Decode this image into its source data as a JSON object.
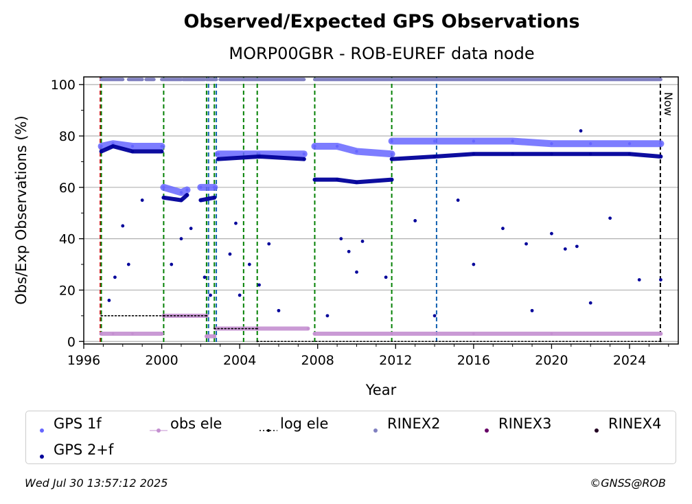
{
  "title": "Observed/Expected GPS Observations",
  "subtitle": "MORP00GBR - ROB-EUREF data node",
  "footer": {
    "timestamp": "Wed Jul 30 13:57:12 2025",
    "credit": "©GNSS@ROB"
  },
  "colors": {
    "gps1f": "#6666ff",
    "gps2f": "#00009a",
    "obs_ele": "#c48fd0",
    "log_ele": "#000000",
    "rinex2": "#8080c0",
    "rinex3": "#660066",
    "rinex4": "#220022",
    "vline_green": "#008000",
    "vline_blue": "#1060b0",
    "vline_red": "#cc0000",
    "grid": "#b0b0b0"
  },
  "chart_data": {
    "type": "scatter",
    "xlabel": "Year",
    "ylabel": "Obs/Exp Observations (%)",
    "xlim": [
      1996,
      2026.5
    ],
    "ylim": [
      -1,
      103
    ],
    "xticks": [
      1996,
      2000,
      2004,
      2008,
      2012,
      2016,
      2020,
      2024
    ],
    "yticks": [
      0,
      20,
      40,
      60,
      80,
      100
    ],
    "grid": true,
    "now_label": "Now",
    "now_x": 2025.58,
    "vlines": [
      {
        "x": 1996.85,
        "color": "red"
      },
      {
        "x": 1996.9,
        "color": "green"
      },
      {
        "x": 2000.1,
        "color": "green"
      },
      {
        "x": 2002.3,
        "color": "green"
      },
      {
        "x": 2002.4,
        "color": "blue"
      },
      {
        "x": 2002.7,
        "color": "green"
      },
      {
        "x": 2002.8,
        "color": "blue"
      },
      {
        "x": 2004.2,
        "color": "green"
      },
      {
        "x": 2004.9,
        "color": "green"
      },
      {
        "x": 2007.85,
        "color": "green"
      },
      {
        "x": 2011.8,
        "color": "green"
      },
      {
        "x": 2014.1,
        "color": "blue"
      }
    ],
    "legend": {
      "placement": "bottom",
      "entries": [
        "GPS 1f",
        "obs ele",
        "log ele",
        "RINEX2",
        "RINEX3",
        "RINEX4",
        "GPS 2+f"
      ]
    },
    "series": [
      {
        "name": "GPS 1f",
        "segments": [
          {
            "x": [
              1996.9,
              1997.5,
              1998.5,
              2000.0
            ],
            "y": [
              76,
              77,
              76,
              76
            ]
          },
          {
            "x": [
              2000.1,
              2001.0,
              2001.3
            ],
            "y": [
              60,
              58,
              59
            ]
          },
          {
            "x": [
              2002.0,
              2002.7
            ],
            "y": [
              60,
              60
            ]
          },
          {
            "x": [
              2002.9,
              2005.0,
              2007.3
            ],
            "y": [
              73,
              73,
              73
            ]
          },
          {
            "x": [
              2007.85,
              2009.0,
              2010.0,
              2011.8
            ],
            "y": [
              76,
              76,
              74,
              73
            ]
          },
          {
            "x": [
              2011.8,
              2014.0,
              2016.0,
              2018.0,
              2020.0,
              2022.0,
              2024.0,
              2025.6
            ],
            "y": [
              78,
              78,
              78,
              78,
              77,
              77,
              77,
              77
            ]
          }
        ]
      },
      {
        "name": "GPS 2+f",
        "segments": [
          {
            "x": [
              1996.9,
              1997.5,
              1998.5,
              2000.0
            ],
            "y": [
              74,
              76,
              74,
              74
            ]
          },
          {
            "x": [
              2000.1,
              2001.0,
              2001.3
            ],
            "y": [
              56,
              55,
              57
            ]
          },
          {
            "x": [
              2002.0,
              2002.7
            ],
            "y": [
              55,
              56
            ]
          },
          {
            "x": [
              2002.9,
              2005.0,
              2007.3
            ],
            "y": [
              71,
              72,
              71
            ]
          },
          {
            "x": [
              2007.85,
              2009.0,
              2010.0,
              2011.8
            ],
            "y": [
              63,
              63,
              62,
              63
            ]
          },
          {
            "x": [
              2011.8,
              2014.0,
              2016.0,
              2018.0,
              2020.0,
              2022.0,
              2024.0,
              2025.6
            ],
            "y": [
              71,
              72,
              73,
              73,
              73,
              73,
              73,
              72
            ]
          }
        ],
        "outliers": [
          [
            1997.3,
            16
          ],
          [
            1997.6,
            25
          ],
          [
            1998.0,
            45
          ],
          [
            1998.3,
            30
          ],
          [
            1999.0,
            55
          ],
          [
            2000.5,
            30
          ],
          [
            2001.0,
            40
          ],
          [
            2001.5,
            44
          ],
          [
            2002.2,
            25
          ],
          [
            2002.5,
            18
          ],
          [
            2003.5,
            34
          ],
          [
            2003.8,
            46
          ],
          [
            2004.0,
            18
          ],
          [
            2004.5,
            30
          ],
          [
            2005.0,
            22
          ],
          [
            2005.5,
            38
          ],
          [
            2006.0,
            12
          ],
          [
            2008.5,
            10
          ],
          [
            2009.2,
            40
          ],
          [
            2009.6,
            35
          ],
          [
            2010.0,
            27
          ],
          [
            2010.3,
            39
          ],
          [
            2011.5,
            25
          ],
          [
            2013.0,
            47
          ],
          [
            2014.0,
            10
          ],
          [
            2015.2,
            55
          ],
          [
            2016.0,
            30
          ],
          [
            2017.5,
            44
          ],
          [
            2018.7,
            38
          ],
          [
            2019.0,
            12
          ],
          [
            2020.0,
            42
          ],
          [
            2020.7,
            36
          ],
          [
            2021.3,
            37
          ],
          [
            2021.5,
            82
          ],
          [
            2022.0,
            15
          ],
          [
            2023.0,
            48
          ],
          [
            2024.5,
            24
          ],
          [
            2025.6,
            24
          ]
        ]
      },
      {
        "name": "obs ele",
        "segments": [
          {
            "x": [
              1996.9,
              1997.5,
              1998.5,
              2000.0
            ],
            "y": [
              3,
              3,
              3,
              3
            ]
          },
          {
            "x": [
              2000.1,
              2002.3
            ],
            "y": [
              10,
              10
            ]
          },
          {
            "x": [
              2002.3,
              2002.7
            ],
            "y": [
              2,
              2
            ]
          },
          {
            "x": [
              2002.8,
              2004.9
            ],
            "y": [
              5,
              5
            ]
          },
          {
            "x": [
              2004.9,
              2007.5
            ],
            "y": [
              5,
              5
            ]
          },
          {
            "x": [
              2007.85,
              2011.8,
              2016.0,
              2020.0,
              2025.6
            ],
            "y": [
              3,
              3,
              3,
              3,
              3
            ]
          }
        ]
      },
      {
        "name": "log ele",
        "segments": [
          {
            "x": [
              1996.9,
              2000.1
            ],
            "y": [
              10,
              10
            ]
          },
          {
            "x": [
              2000.1,
              2002.3
            ],
            "y": [
              10,
              10
            ]
          },
          {
            "x": [
              2002.7,
              2004.9
            ],
            "y": [
              5,
              5
            ]
          },
          {
            "x": [
              2004.9,
              2025.6
            ],
            "y": [
              0,
              0
            ]
          }
        ]
      },
      {
        "name": "RINEX2",
        "segments": [
          {
            "x": [
              1996.9,
              1998.0
            ],
            "y": [
              102,
              102
            ]
          },
          {
            "x": [
              1998.3,
              1999.0
            ],
            "y": [
              102,
              102
            ]
          },
          {
            "x": [
              1999.2,
              1999.6
            ],
            "y": [
              102,
              102
            ]
          },
          {
            "x": [
              2000.0,
              2001.0
            ],
            "y": [
              102,
              102
            ]
          },
          {
            "x": [
              2001.1,
              2002.2
            ],
            "y": [
              102,
              102
            ]
          },
          {
            "x": [
              2002.3,
              2002.8
            ],
            "y": [
              102,
              102
            ]
          },
          {
            "x": [
              2003.0,
              2007.3
            ],
            "y": [
              102,
              102
            ]
          },
          {
            "x": [
              2007.85,
              2025.6
            ],
            "y": [
              102,
              102
            ]
          }
        ]
      }
    ]
  }
}
